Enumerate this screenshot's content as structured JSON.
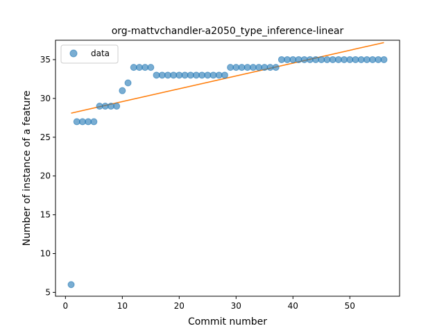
{
  "chart_data": {
    "type": "scatter",
    "title": "org-mattvchandler-a2050_type_inference-linear",
    "xlabel": "Commit number",
    "ylabel": "Number of instance of a feature",
    "xlim": [
      -1.75,
      58.75
    ],
    "ylim": [
      4.5,
      37.5
    ],
    "xticks": [
      0,
      10,
      20,
      30,
      40,
      50
    ],
    "yticks": [
      5,
      10,
      15,
      20,
      25,
      30,
      35
    ],
    "grid": false,
    "legend": {
      "position": "top-left",
      "entries": [
        "data"
      ]
    },
    "colors": {
      "data": "#1f77b4",
      "fit": "#ff7f0e"
    },
    "series": [
      {
        "name": "data",
        "kind": "scatter",
        "x": [
          1,
          2,
          3,
          4,
          5,
          6,
          7,
          8,
          9,
          10,
          11,
          12,
          13,
          14,
          15,
          16,
          17,
          18,
          19,
          20,
          21,
          22,
          23,
          24,
          25,
          26,
          27,
          28,
          29,
          30,
          31,
          32,
          33,
          34,
          35,
          36,
          37,
          38,
          39,
          40,
          41,
          42,
          43,
          44,
          45,
          46,
          47,
          48,
          49,
          50,
          51,
          52,
          53,
          54,
          55,
          56
        ],
        "y": [
          6,
          27,
          27,
          27,
          27,
          29,
          29,
          29,
          29,
          31,
          32,
          34,
          34,
          34,
          34,
          33,
          33,
          33,
          33,
          33,
          33,
          33,
          33,
          33,
          33,
          33,
          33,
          33,
          34,
          34,
          34,
          34,
          34,
          34,
          34,
          34,
          34,
          35,
          35,
          35,
          35,
          35,
          35,
          35,
          35,
          35,
          35,
          35,
          35,
          35,
          35,
          35,
          35,
          35,
          35,
          35
        ]
      },
      {
        "kind": "line",
        "x": [
          1,
          56
        ],
        "y": [
          28.1,
          37.2
        ]
      }
    ]
  }
}
